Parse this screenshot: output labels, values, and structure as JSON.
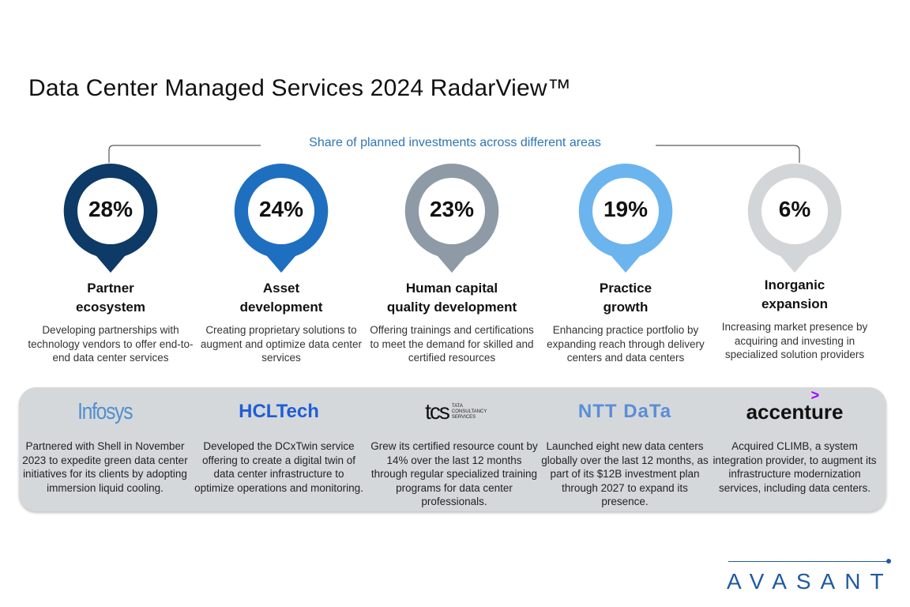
{
  "title": "Data Center Managed Services 2024 RadarView™",
  "subtitle": "Share of planned investments across different areas",
  "areas": [
    {
      "percent": "28%",
      "value": 28,
      "heading_line1": "Partner",
      "heading_line2": "ecosystem",
      "description": "Developing partnerships with technology vendors to offer end-to-end data center services",
      "color": "#0d3a66"
    },
    {
      "percent": "24%",
      "value": 24,
      "heading_line1": "Asset",
      "heading_line2": "development",
      "description": "Creating proprietary solutions to augment and optimize data center services",
      "color": "#1f6fc0"
    },
    {
      "percent": "23%",
      "value": 23,
      "heading_line1": "Human capital",
      "heading_line2": "quality development",
      "description": "Offering trainings and certifications to meet the demand for skilled and certified resources",
      "color": "#8e9aa6"
    },
    {
      "percent": "19%",
      "value": 19,
      "heading_line1": "Practice",
      "heading_line2": "growth",
      "description": "Enhancing practice portfolio by expanding reach through delivery centers and data centers",
      "color": "#6cb4ee"
    },
    {
      "percent": "6%",
      "value": 6,
      "heading_line1": "Inorganic",
      "heading_line2": "expansion",
      "description": "Increasing market presence by acquiring and investing in specialized solution providers",
      "color": "#d3d6d9"
    }
  ],
  "vendors": [
    {
      "logo": "Infosys",
      "description": "Partnered with Shell in November 2023 to expedite green data center initiatives for its clients by adopting immersion liquid cooling."
    },
    {
      "logo": "HCLTech",
      "description": "Developed the DCxTwin service offering to create a digital twin of data center infrastructure to optimize operations and monitoring."
    },
    {
      "logo": "tcs",
      "logo_sub": "TATA CONSULTANCY SERVICES",
      "description": "Grew its certified resource count by 14% over the last 12 months through regular specialized training programs for data center professionals."
    },
    {
      "logo": "NTT DaTa",
      "description": "Launched eight new data centers globally over the last 12 months, as part of its $12B investment plan through 2027 to expand its presence."
    },
    {
      "logo": "accenture",
      "description": "Acquired CLIMB, a system integration provider, to augment its infrastructure modernization services, including data centers."
    }
  ],
  "brand": "AVASANT"
}
